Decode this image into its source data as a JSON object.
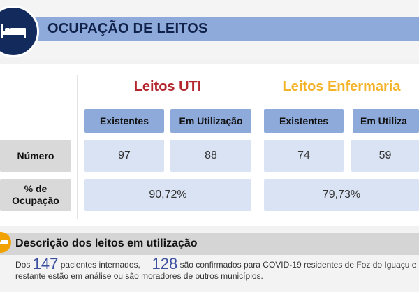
{
  "header": {
    "title": "OCUPAÇÃO DE LEITOS",
    "icon": "bed-icon"
  },
  "uti": {
    "title": "Leitos UTI",
    "col_existentes": "Existentes",
    "col_utilizacao": "Em Utilização",
    "existentes": "97",
    "em_utilizacao": "88",
    "ocupacao": "90,72%",
    "color": "#b4262d"
  },
  "enfermaria": {
    "title": "Leitos Enfermaria",
    "col_existentes": "Existentes",
    "col_utilizacao": "Em Utiliza",
    "existentes": "74",
    "em_utilizacao": "59",
    "ocupacao": "79,73%",
    "color": "#f4b328"
  },
  "rows": {
    "numero": "Número",
    "ocupacao": "% de Ocupação"
  },
  "description": {
    "title": "Descrição dos leitos em utilização",
    "prefix": "Dos",
    "count_patients": "147",
    "mid_text": "pacientes internados,",
    "count_confirmed": "128",
    "suffix": "são confirmados para COVID-19 residentes de Foz do Iguaçu e o",
    "line2": "restante estão em análise ou são moradores de outros municípios.",
    "icon": "bed-icon"
  },
  "colors": {
    "header_band": "#8eaadb",
    "value_cell": "#dae3f3",
    "label_cell": "#d9d9d9",
    "logo": "#122a5c",
    "accent_orange": "#f2a200"
  }
}
